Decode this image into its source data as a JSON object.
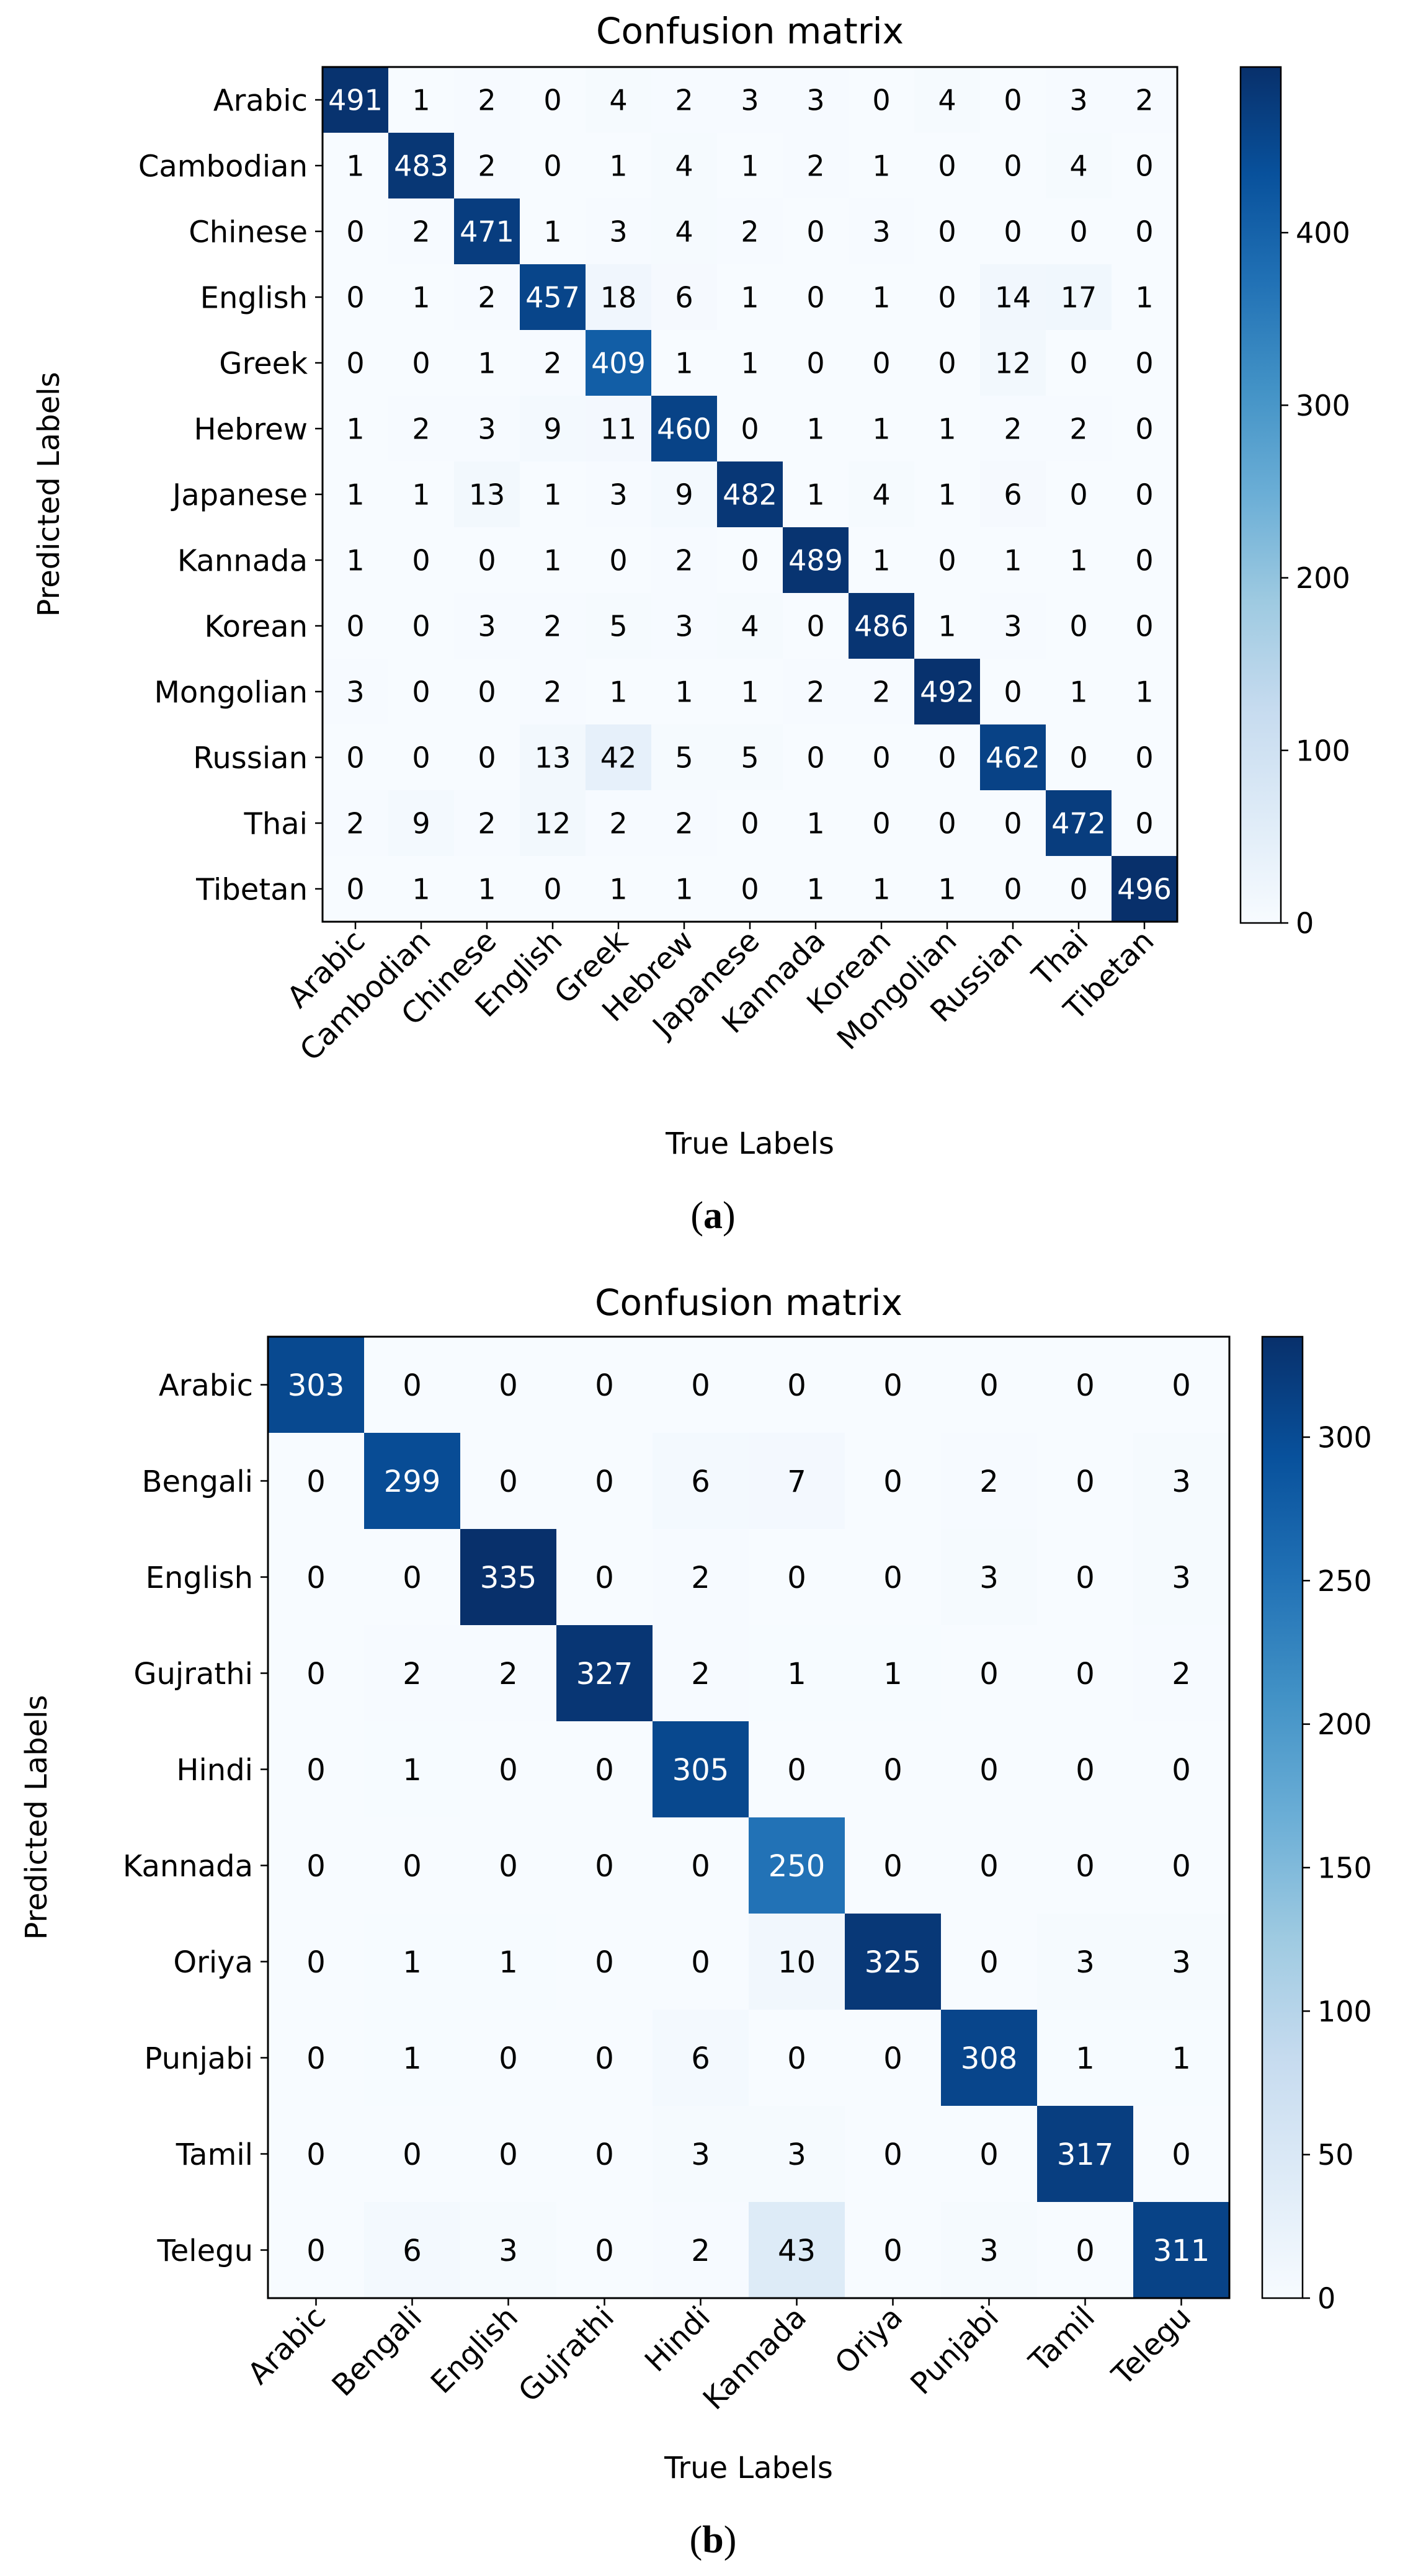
{
  "chart_data": [
    {
      "type": "heatmap",
      "title": "Confusion matrix",
      "xlabel": "True Labels",
      "ylabel": "Predicted Labels",
      "labels": [
        "Arabic",
        "Cambodian",
        "Chinese",
        "English",
        "Greek",
        "Hebrew",
        "Japanese",
        "Kannada",
        "Korean",
        "Mongolian",
        "Russian",
        "Thai",
        "Tibetan"
      ],
      "matrix": [
        [
          491,
          1,
          2,
          0,
          4,
          2,
          3,
          3,
          0,
          4,
          0,
          3,
          2
        ],
        [
          1,
          483,
          2,
          0,
          1,
          4,
          1,
          2,
          1,
          0,
          0,
          4,
          0
        ],
        [
          0,
          2,
          471,
          1,
          3,
          4,
          2,
          0,
          3,
          0,
          0,
          0,
          0
        ],
        [
          0,
          1,
          2,
          457,
          18,
          6,
          1,
          0,
          1,
          0,
          14,
          17,
          1
        ],
        [
          0,
          0,
          1,
          2,
          409,
          1,
          1,
          0,
          0,
          0,
          12,
          0,
          0
        ],
        [
          1,
          2,
          3,
          9,
          11,
          460,
          0,
          1,
          1,
          1,
          2,
          2,
          0
        ],
        [
          1,
          1,
          13,
          1,
          3,
          9,
          482,
          1,
          4,
          1,
          6,
          0,
          0
        ],
        [
          1,
          0,
          0,
          1,
          0,
          2,
          0,
          489,
          1,
          0,
          1,
          1,
          0
        ],
        [
          0,
          0,
          3,
          2,
          5,
          3,
          4,
          0,
          486,
          1,
          3,
          0,
          0
        ],
        [
          3,
          0,
          0,
          2,
          1,
          1,
          1,
          2,
          2,
          492,
          0,
          1,
          1
        ],
        [
          0,
          0,
          0,
          13,
          42,
          5,
          5,
          0,
          0,
          0,
          462,
          0,
          0
        ],
        [
          2,
          9,
          2,
          12,
          2,
          2,
          0,
          1,
          0,
          0,
          0,
          472,
          0
        ],
        [
          0,
          1,
          1,
          0,
          1,
          1,
          0,
          1,
          1,
          1,
          0,
          0,
          496
        ]
      ],
      "colorbar": {
        "min": 0,
        "max": 496,
        "ticks": [
          0,
          100,
          200,
          300,
          400
        ]
      },
      "caption": "a"
    },
    {
      "type": "heatmap",
      "title": "Confusion matrix",
      "xlabel": "True Labels",
      "ylabel": "Predicted Labels",
      "labels": [
        "Arabic",
        "Bengali",
        "English",
        "Gujrathi",
        "Hindi",
        "Kannada",
        "Oriya",
        "Punjabi",
        "Tamil",
        "Telegu"
      ],
      "matrix": [
        [
          303,
          0,
          0,
          0,
          0,
          0,
          0,
          0,
          0,
          0
        ],
        [
          0,
          299,
          0,
          0,
          6,
          7,
          0,
          2,
          0,
          3
        ],
        [
          0,
          0,
          335,
          0,
          2,
          0,
          0,
          3,
          0,
          3
        ],
        [
          0,
          2,
          2,
          327,
          2,
          1,
          1,
          0,
          0,
          2
        ],
        [
          0,
          1,
          0,
          0,
          305,
          0,
          0,
          0,
          0,
          0
        ],
        [
          0,
          0,
          0,
          0,
          0,
          250,
          0,
          0,
          0,
          0
        ],
        [
          0,
          1,
          1,
          0,
          0,
          10,
          325,
          0,
          3,
          3
        ],
        [
          0,
          1,
          0,
          0,
          6,
          0,
          0,
          308,
          1,
          1
        ],
        [
          0,
          0,
          0,
          0,
          3,
          3,
          0,
          0,
          317,
          0
        ],
        [
          0,
          6,
          3,
          0,
          2,
          43,
          0,
          3,
          0,
          311
        ]
      ],
      "colorbar": {
        "min": 0,
        "max": 335,
        "ticks": [
          0,
          50,
          100,
          150,
          200,
          250,
          300
        ]
      },
      "caption": "b"
    }
  ],
  "colors": {
    "low": "#f7fbff",
    "high": "#08306b",
    "text_dark": "#000000",
    "text_light": "#ffffff"
  }
}
